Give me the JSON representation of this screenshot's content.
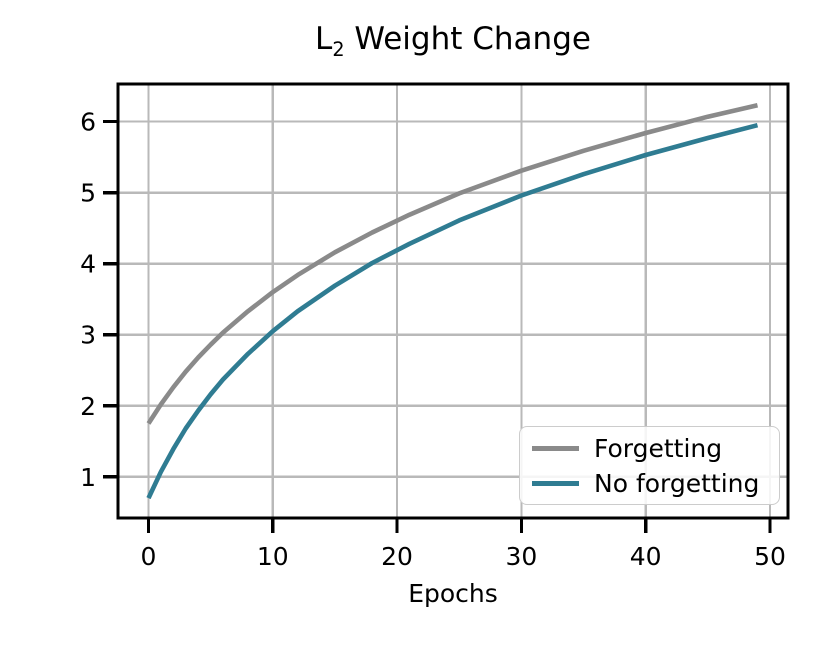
{
  "chart_data": {
    "type": "line",
    "title": "L₂ Weight Change",
    "title_parts": {
      "pre": "L",
      "sub": "2",
      "post": " Weight Change"
    },
    "xlabel": "Epochs",
    "ylabel": "",
    "xlim": [
      -2.45,
      51.45
    ],
    "ylim": [
      0.42,
      6.53
    ],
    "xticks": [
      0,
      10,
      20,
      30,
      40,
      50
    ],
    "yticks": [
      1,
      2,
      3,
      4,
      5,
      6
    ],
    "grid": true,
    "grid_color": "#b9b9b9",
    "axis_color": "#000000",
    "tick_label_color": "#000000",
    "legend": {
      "position": "lower right",
      "background": "rgba(255,255,255,0.85)",
      "border_color": "#cccccc"
    },
    "series": [
      {
        "name": "Forgetting",
        "color": "#8a8a8a",
        "x": [
          0,
          1,
          2,
          3,
          4,
          5,
          6,
          8,
          10,
          12,
          15,
          18,
          21,
          25,
          30,
          35,
          40,
          45,
          49
        ],
        "y": [
          1.75,
          2.02,
          2.26,
          2.48,
          2.68,
          2.86,
          3.03,
          3.33,
          3.6,
          3.84,
          4.16,
          4.44,
          4.69,
          4.99,
          5.31,
          5.59,
          5.84,
          6.07,
          6.23
        ]
      },
      {
        "name": "No forgetting",
        "color": "#2f7c92",
        "x": [
          0,
          1,
          2,
          3,
          4,
          5,
          6,
          8,
          10,
          12,
          15,
          18,
          21,
          25,
          30,
          35,
          40,
          45,
          49
        ],
        "y": [
          0.7,
          1.07,
          1.39,
          1.68,
          1.93,
          2.16,
          2.37,
          2.73,
          3.05,
          3.33,
          3.69,
          4.01,
          4.28,
          4.61,
          4.96,
          5.26,
          5.53,
          5.77,
          5.95
        ]
      }
    ]
  }
}
